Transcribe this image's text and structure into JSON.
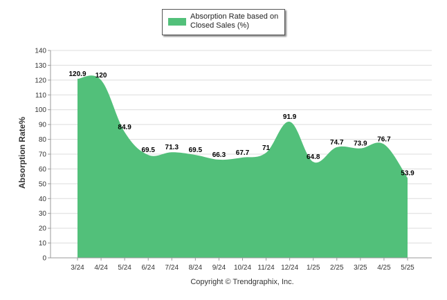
{
  "legend": {
    "label": "Absorption Rate based on Closed Sales (%)"
  },
  "copyright": "Copyright © Trendgraphix, Inc.",
  "colors": {
    "area": "#52c07a",
    "grid": "#dcdcdc",
    "axis": "#999999"
  },
  "chart_data": {
    "type": "area",
    "title": "",
    "xlabel": "",
    "ylabel": "Absorption Rate%",
    "categories": [
      "3/24",
      "4/24",
      "5/24",
      "6/24",
      "7/24",
      "8/24",
      "9/24",
      "10/24",
      "11/24",
      "12/24",
      "1/25",
      "2/25",
      "3/25",
      "4/25",
      "5/25"
    ],
    "series": [
      {
        "name": "Absorption Rate based on Closed Sales (%)",
        "values": [
          120.9,
          120,
          84.9,
          69.5,
          71.3,
          69.5,
          66.3,
          67.7,
          71,
          91.9,
          64.8,
          74.7,
          73.9,
          76.7,
          53.9
        ]
      }
    ],
    "yticks": [
      0,
      10,
      20,
      30,
      40,
      50,
      60,
      70,
      80,
      90,
      100,
      110,
      120,
      130,
      140
    ],
    "ylim": [
      0,
      140
    ],
    "grid": true,
    "legend_position": "top-center"
  }
}
